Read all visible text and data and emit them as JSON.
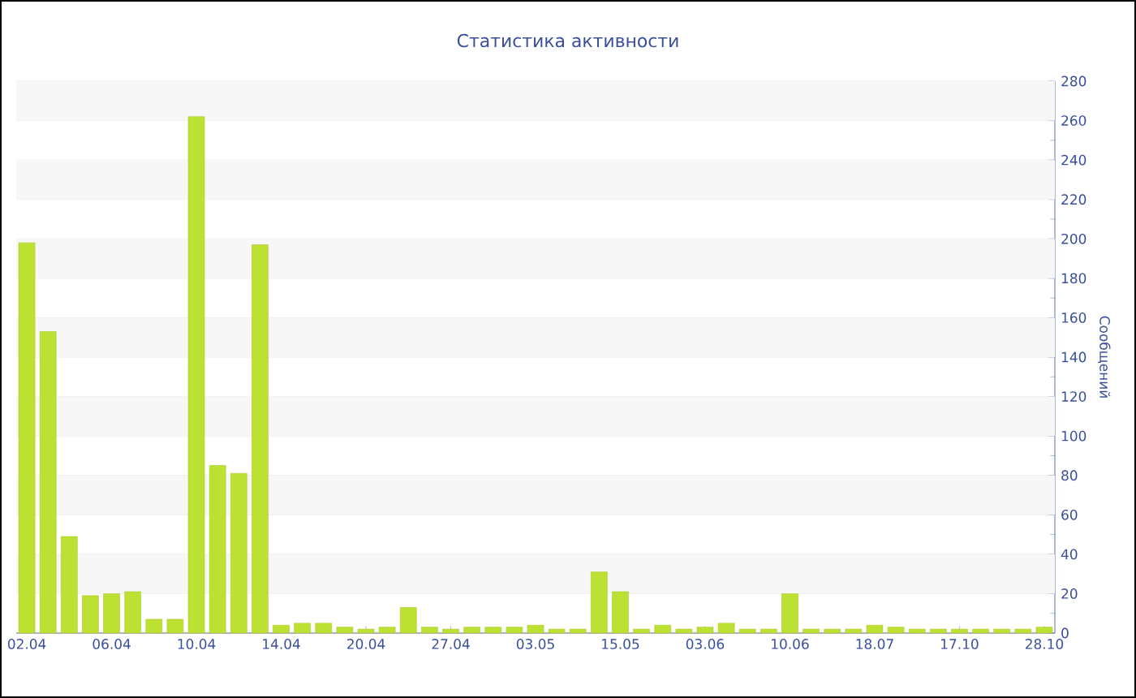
{
  "chart_data": {
    "type": "bar",
    "title": "Статистика активности",
    "ylabel": "Сообщений",
    "categories": [
      "02.04",
      null,
      null,
      null,
      "06.04",
      null,
      null,
      null,
      "10.04",
      null,
      null,
      null,
      "14.04",
      null,
      null,
      null,
      "20.04",
      null,
      null,
      null,
      "27.04",
      null,
      null,
      null,
      "03.05",
      null,
      null,
      null,
      "15.05",
      null,
      null,
      null,
      "03.06",
      null,
      null,
      null,
      "10.06",
      null,
      null,
      null,
      "18.07",
      null,
      null,
      null,
      "17.10",
      null,
      null,
      null,
      "28.10"
    ],
    "values": [
      198,
      153,
      49,
      19,
      20,
      21,
      7,
      7,
      262,
      85,
      81,
      197,
      4,
      5,
      5,
      3,
      2,
      3,
      13,
      3,
      2,
      3,
      3,
      3,
      4,
      2,
      2,
      31,
      21,
      2,
      4,
      2,
      3,
      5,
      2,
      2,
      20,
      2,
      2,
      2,
      4,
      3,
      2,
      2,
      2,
      2,
      2,
      2,
      3
    ],
    "color": "#bde132",
    "ylim": [
      0,
      280
    ],
    "yticks": [
      0,
      20,
      40,
      60,
      80,
      100,
      120,
      140,
      160,
      180,
      200,
      220,
      240,
      260,
      280
    ],
    "grid": "y"
  }
}
